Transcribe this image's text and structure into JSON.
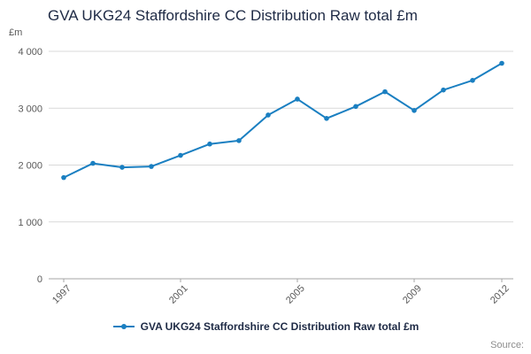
{
  "chart_data": {
    "type": "line",
    "title": "GVA UKG24 Staffordshire CC Distribution Raw total £m",
    "ylabel": "£m",
    "x": [
      1997,
      1998,
      1999,
      2000,
      2001,
      2002,
      2003,
      2004,
      2005,
      2006,
      2007,
      2008,
      2009,
      2010,
      2011,
      2012
    ],
    "values": [
      1780,
      2030,
      1960,
      1975,
      2170,
      2370,
      2430,
      2880,
      3160,
      2820,
      3030,
      3290,
      2960,
      3320,
      3490,
      3790
    ],
    "ylim": [
      0,
      4000
    ],
    "yticks": [
      0,
      1000,
      2000,
      3000,
      4000
    ],
    "ytick_labels": [
      "0",
      "1 000",
      "2 000",
      "3 000",
      "4 000"
    ],
    "xticks": [
      1997,
      2001,
      2005,
      2009,
      2012
    ],
    "grid": true,
    "legend": "GVA UKG24 Staffordshire CC Distribution Raw total £m",
    "legend_position": "bottom",
    "colors": {
      "line": "#1a7fc1",
      "grid": "#d9d9d9",
      "axis": "#a6a6a6",
      "tick_text": "#595959"
    }
  },
  "source_label": "Source:"
}
